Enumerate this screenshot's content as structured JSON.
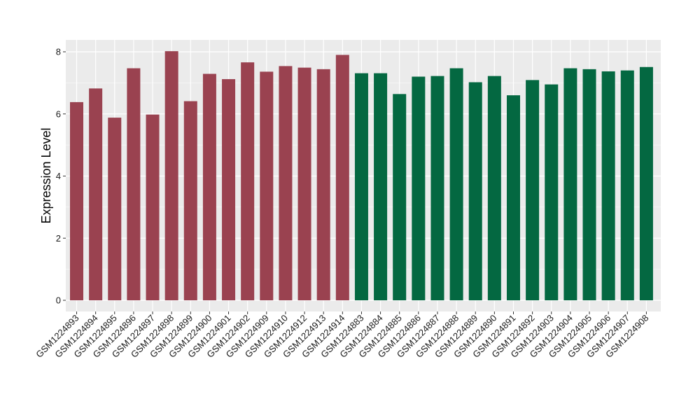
{
  "chart_data": {
    "type": "bar",
    "title": "",
    "xlabel": "",
    "ylabel": "Expression Level",
    "ylim": [
      0,
      8.3
    ],
    "yticks": [
      0,
      2,
      4,
      6,
      8
    ],
    "grid": true,
    "legend": "none",
    "colors": {
      "panel_bg": "#EBEBEB",
      "grid": "#FFFFFF",
      "group_a": "#9A4250",
      "group_b": "#046841"
    },
    "categories": [
      "GSM1224893",
      "GSM1224894",
      "GSM1224895",
      "GSM1224896",
      "GSM1224897",
      "GSM1224898",
      "GSM1224899",
      "GSM1224900",
      "GSM1224901",
      "GSM1224902",
      "GSM1224909",
      "GSM1224910",
      "GSM1224912",
      "GSM1224913",
      "GSM1224914",
      "GSM1224883",
      "GSM1224884",
      "GSM1224885",
      "GSM1224886",
      "GSM1224887",
      "GSM1224888",
      "GSM1224889",
      "GSM1224890",
      "GSM1224891",
      "GSM1224892",
      "GSM1224903",
      "GSM1224904",
      "GSM1224905",
      "GSM1224906",
      "GSM1224907",
      "GSM1224908"
    ],
    "values": [
      6.38,
      6.82,
      5.88,
      7.47,
      5.98,
      8.02,
      6.41,
      7.29,
      7.12,
      7.66,
      7.36,
      7.54,
      7.49,
      7.44,
      7.9,
      7.31,
      7.31,
      6.64,
      7.2,
      7.22,
      7.47,
      7.02,
      7.22,
      6.6,
      7.09,
      6.95,
      7.47,
      7.44,
      7.37,
      7.4,
      7.51
    ],
    "groups": [
      "a",
      "a",
      "a",
      "a",
      "a",
      "a",
      "a",
      "a",
      "a",
      "a",
      "a",
      "a",
      "a",
      "a",
      "a",
      "b",
      "b",
      "b",
      "b",
      "b",
      "b",
      "b",
      "b",
      "b",
      "b",
      "b",
      "b",
      "b",
      "b",
      "b",
      "b"
    ]
  }
}
